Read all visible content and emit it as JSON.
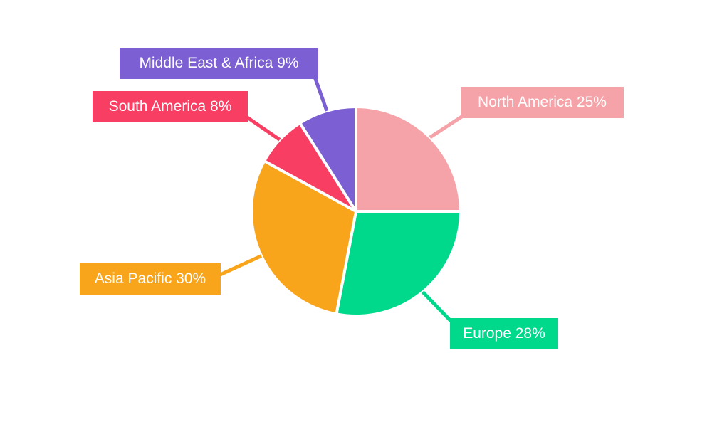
{
  "chart_data": {
    "type": "pie",
    "title": "",
    "background_color": "#ffffff",
    "label_text_color": "#ffffff",
    "direction": "clockwise",
    "start_angle_deg_from_top": 0,
    "legend_position": "none",
    "labels_style": "external colored boxes with leader lines",
    "slices": [
      {
        "name": "North America",
        "value": 25,
        "label": "North America 25%",
        "color": "#F5A3A8"
      },
      {
        "name": "Europe",
        "value": 28,
        "label": "Europe 28%",
        "color": "#00D98C"
      },
      {
        "name": "Asia Pacific",
        "value": 30,
        "label": "Asia Pacific 30%",
        "color": "#F9A51B"
      },
      {
        "name": "South America",
        "value": 8,
        "label": "South America 8%",
        "color": "#F93E63"
      },
      {
        "name": "Middle East & Africa",
        "value": 9,
        "label": "Middle East & Africa 9%",
        "color": "#7B5FD3"
      }
    ]
  }
}
